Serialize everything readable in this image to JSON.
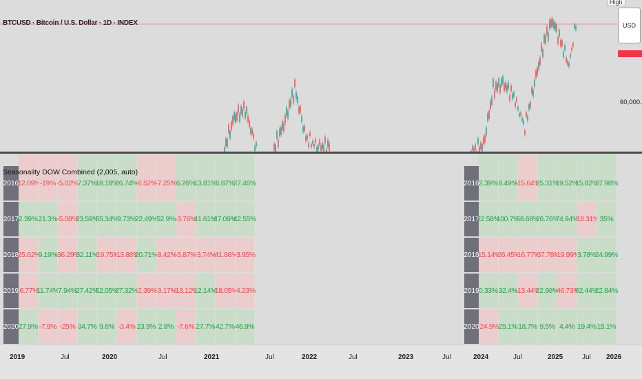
{
  "header": {
    "symbol_title": "BTCUSD · Bitcoin / U.S. Dollar · 1D · INDEX",
    "top_label": "High",
    "currency": "USD",
    "price_level": "60,000.00"
  },
  "indicator": {
    "title": "Seasonality DOW Combined (2,005, auto)"
  },
  "left_table": {
    "rows": [
      {
        "year": "2016",
        "values": [
          "-12.09%",
          "-19%",
          "-5.02%",
          "7.37%",
          "18.18%",
          "26.74%",
          "-6.52%",
          "-7.25%",
          "6.26%",
          "13.81%",
          "6.87%",
          "27.46%"
        ]
      },
      {
        "year": "2017",
        "values": [
          "2.39%",
          "21.3%",
          "-5.08%",
          "23.59%",
          "55.34%",
          "9.73%",
          "22.49%",
          "52.9%",
          "-3.76%",
          "41.61%",
          "47.09%",
          "42.55%"
        ]
      },
      {
        "year": "2018",
        "values": [
          "-25.62%",
          "9.19%",
          "-36.29%",
          "32.11%",
          "-19.75%",
          "-13.88%",
          "20.71%",
          "-8.42%",
          "-5.87%",
          "-3.74%",
          "-41.86%",
          "-3.95%"
        ]
      },
      {
        "year": "2019",
        "values": [
          "-6.77%",
          "11.74%",
          "7.94%",
          "27.42%",
          "52.05%",
          "27.32%",
          "-2.39%",
          "-3.17%",
          "-13.12%",
          "12.14%",
          "-18.05%",
          "-4.23%"
        ]
      },
      {
        "year": "2020",
        "values": [
          "27.9%",
          "-7.9%",
          "-25%",
          "34.7%",
          "9.6%",
          "-3.4%",
          "23.9%",
          "2.8%",
          "-7.6%",
          "27.7%",
          "42.7%",
          "46.9%"
        ]
      }
    ]
  },
  "right_table": {
    "rows": [
      {
        "year": "2016",
        "values": [
          "2.39%",
          "8.49%",
          "-15.64%",
          "25.31%",
          "19.52%",
          "15.82%",
          "37.98%"
        ]
      },
      {
        "year": "2017",
        "values": [
          "22.58%",
          "100.7%",
          "58.68%",
          "26.76%",
          "74.94%",
          "-18.31%",
          "35%"
        ]
      },
      {
        "year": "2018",
        "values": [
          "-15.14%",
          "-26.45%",
          "-16.77%",
          "-37.78%",
          "-19.99%",
          "3.78%",
          "24.99%"
        ]
      },
      {
        "year": "2019",
        "values": [
          "0.33%",
          "32.4%",
          "-13.44%",
          "22.98%",
          "-46.73%",
          "62.44%",
          "22.84%"
        ]
      },
      {
        "year": "2020",
        "values": [
          "-24.9%",
          "25.1%",
          "18.7%",
          "9.5%",
          "4.4%",
          "19.4%",
          "15.1%"
        ]
      }
    ]
  },
  "time_axis": {
    "ticks": [
      {
        "label": "2019",
        "bold": true
      },
      {
        "label": "Jul",
        "bold": false
      },
      {
        "label": "2020",
        "bold": true
      },
      {
        "label": "Jul",
        "bold": false
      },
      {
        "label": "2021",
        "bold": true
      },
      {
        "label": "Jul",
        "bold": false
      },
      {
        "label": "2022",
        "bold": true
      },
      {
        "label": "Jul",
        "bold": false
      },
      {
        "label": "2023",
        "bold": true
      },
      {
        "label": "Jul",
        "bold": false
      },
      {
        "label": "2024",
        "bold": true
      },
      {
        "label": "Jul",
        "bold": false
      },
      {
        "label": "2025",
        "bold": true
      },
      {
        "label": "Jul",
        "bold": false
      },
      {
        "label": "2026",
        "bold": true
      }
    ]
  },
  "colors": {
    "positive_text": "#2e9c4d",
    "negative_text": "#e84a50",
    "positive_bg": "#c9ddc8",
    "negative_bg": "#ebcdcd",
    "price_line": "#f23645",
    "candle_up": "#26a69a",
    "candle_down": "#ef5350"
  }
}
